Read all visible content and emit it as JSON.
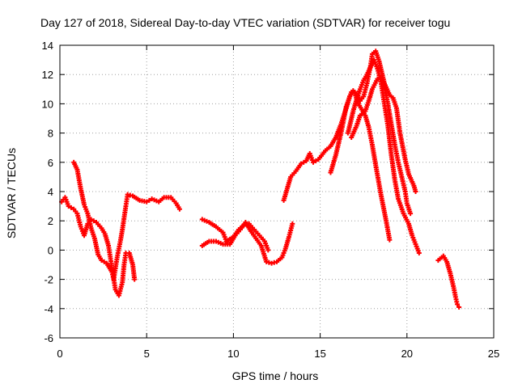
{
  "chart_data": {
    "type": "scatter",
    "title": "Day 127 of 2018, Sidereal Day-to-day VTEC variation (SDTVAR) for receiver togu",
    "xlabel": "GPS time / hours",
    "ylabel": "SDTVAR / TECUs",
    "xlim": [
      0,
      25
    ],
    "ylim": [
      -6,
      14
    ],
    "xticks": [
      "0",
      "5",
      "10",
      "15",
      "20",
      "25"
    ],
    "yticks": [
      "-6",
      "-4",
      "-2",
      "0",
      "2",
      "4",
      "6",
      "8",
      "10",
      "12",
      "14"
    ],
    "grid": true,
    "marker": "+",
    "color": "#ff0000",
    "series": [
      {
        "segments": [
          [
            [
              0.1,
              3.3
            ],
            [
              0.3,
              3.6
            ],
            [
              0.5,
              3.0
            ],
            [
              0.8,
              2.8
            ],
            [
              1.0,
              2.5
            ],
            [
              1.2,
              1.6
            ],
            [
              1.4,
              1.0
            ],
            [
              1.6,
              1.8
            ],
            [
              1.8,
              2.1
            ],
            [
              2.1,
              1.9
            ],
            [
              2.4,
              1.5
            ],
            [
              2.6,
              1.1
            ],
            [
              2.8,
              0.3
            ],
            [
              3.0,
              -1.2
            ],
            [
              3.2,
              -2.7
            ],
            [
              3.4,
              -3.1
            ],
            [
              3.6,
              -2.2
            ],
            [
              3.7,
              -1.0
            ],
            [
              3.8,
              -0.2
            ],
            [
              4.0,
              -0.2
            ],
            [
              4.2,
              -1.0
            ],
            [
              4.3,
              -2.0
            ]
          ],
          [
            [
              0.8,
              6.0
            ],
            [
              1.0,
              5.5
            ],
            [
              1.2,
              4.2
            ],
            [
              1.4,
              3.1
            ],
            [
              1.6,
              2.5
            ],
            [
              1.8,
              1.5
            ],
            [
              2.0,
              0.8
            ],
            [
              2.2,
              -0.3
            ],
            [
              2.4,
              -0.7
            ],
            [
              2.7,
              -0.9
            ],
            [
              3.0,
              -1.5
            ],
            [
              3.1,
              -2.0
            ],
            [
              3.3,
              -0.5
            ],
            [
              3.5,
              0.7
            ],
            [
              3.6,
              1.4
            ],
            [
              3.8,
              3.0
            ],
            [
              3.9,
              3.8
            ],
            [
              4.2,
              3.7
            ],
            [
              4.6,
              3.4
            ],
            [
              5.0,
              3.3
            ],
            [
              5.3,
              3.5
            ],
            [
              5.7,
              3.3
            ],
            [
              6.0,
              3.6
            ],
            [
              6.4,
              3.6
            ],
            [
              6.7,
              3.2
            ],
            [
              6.9,
              2.8
            ]
          ],
          [
            [
              8.2,
              2.1
            ],
            [
              8.6,
              1.9
            ],
            [
              9.0,
              1.6
            ],
            [
              9.4,
              1.2
            ],
            [
              9.6,
              0.6
            ],
            [
              10.0,
              0.9
            ],
            [
              10.3,
              1.4
            ],
            [
              10.6,
              1.7
            ],
            [
              10.9,
              1.8
            ],
            [
              11.2,
              1.4
            ],
            [
              11.5,
              1.0
            ],
            [
              11.8,
              0.6
            ],
            [
              12.0,
              0.0
            ]
          ],
          [
            [
              8.2,
              0.3
            ],
            [
              8.6,
              0.6
            ],
            [
              9.0,
              0.6
            ],
            [
              9.4,
              0.4
            ],
            [
              9.8,
              0.4
            ],
            [
              10.1,
              1.0
            ],
            [
              10.4,
              1.4
            ],
            [
              10.7,
              1.9
            ],
            [
              11.0,
              1.3
            ],
            [
              11.3,
              0.8
            ],
            [
              11.6,
              0.3
            ],
            [
              11.9,
              -0.8
            ],
            [
              12.2,
              -0.9
            ],
            [
              12.5,
              -0.8
            ],
            [
              12.8,
              -0.5
            ],
            [
              13.0,
              0.1
            ],
            [
              13.2,
              0.9
            ],
            [
              13.4,
              1.8
            ]
          ],
          [
            [
              12.9,
              3.4
            ],
            [
              13.1,
              4.2
            ],
            [
              13.3,
              5.0
            ],
            [
              13.6,
              5.4
            ],
            [
              13.9,
              5.9
            ],
            [
              14.2,
              6.1
            ],
            [
              14.4,
              6.6
            ],
            [
              14.6,
              6.0
            ],
            [
              14.9,
              6.2
            ],
            [
              15.3,
              6.8
            ],
            [
              15.6,
              7.1
            ],
            [
              15.9,
              7.7
            ],
            [
              16.2,
              8.6
            ],
            [
              16.5,
              9.7
            ],
            [
              16.7,
              10.5
            ],
            [
              16.9,
              10.9
            ],
            [
              17.1,
              10.7
            ],
            [
              17.3,
              10.2
            ],
            [
              17.5,
              10.5
            ],
            [
              17.7,
              11.4
            ],
            [
              17.9,
              12.6
            ],
            [
              18.0,
              13.4
            ],
            [
              18.2,
              13.6
            ],
            [
              18.4,
              12.9
            ],
            [
              18.7,
              11.4
            ],
            [
              19.0,
              10.6
            ],
            [
              19.2,
              10.4
            ],
            [
              19.4,
              9.7
            ],
            [
              19.6,
              8.0
            ],
            [
              19.9,
              6.2
            ],
            [
              20.1,
              5.2
            ],
            [
              20.4,
              4.4
            ],
            [
              20.5,
              4.0
            ]
          ],
          [
            [
              15.6,
              5.3
            ],
            [
              15.9,
              6.5
            ],
            [
              16.2,
              8.0
            ],
            [
              16.5,
              9.8
            ],
            [
              16.8,
              10.8
            ],
            [
              17.0,
              10.7
            ],
            [
              17.2,
              10.0
            ],
            [
              17.4,
              9.6
            ],
            [
              17.6,
              9.2
            ],
            [
              17.8,
              8.4
            ],
            [
              18.0,
              7.2
            ],
            [
              18.2,
              5.8
            ],
            [
              18.5,
              3.8
            ],
            [
              18.8,
              2.0
            ],
            [
              19.0,
              0.7
            ]
          ],
          [
            [
              16.6,
              8.0
            ],
            [
              16.9,
              9.5
            ],
            [
              17.1,
              10.3
            ],
            [
              17.3,
              11.0
            ],
            [
              17.5,
              11.6
            ],
            [
              17.7,
              12.0
            ],
            [
              17.9,
              12.5
            ],
            [
              18.1,
              13.0
            ],
            [
              18.3,
              12.4
            ],
            [
              18.5,
              11.5
            ],
            [
              18.7,
              10.0
            ],
            [
              18.9,
              8.5
            ],
            [
              19.1,
              6.5
            ],
            [
              19.3,
              4.8
            ],
            [
              19.5,
              3.5
            ],
            [
              19.8,
              2.5
            ],
            [
              20.1,
              1.8
            ],
            [
              20.3,
              1.0
            ],
            [
              20.5,
              0.4
            ],
            [
              20.7,
              -0.2
            ]
          ],
          [
            [
              16.8,
              7.7
            ],
            [
              17.1,
              8.5
            ],
            [
              17.3,
              9.2
            ],
            [
              17.6,
              9.5
            ],
            [
              17.8,
              10.2
            ],
            [
              18.0,
              11.0
            ],
            [
              18.3,
              11.7
            ],
            [
              18.5,
              11.8
            ],
            [
              18.7,
              11.3
            ],
            [
              18.9,
              10.0
            ],
            [
              19.1,
              8.6
            ],
            [
              19.3,
              7.2
            ],
            [
              19.5,
              6.0
            ],
            [
              19.7,
              5.0
            ],
            [
              19.9,
              4.0
            ],
            [
              20.0,
              3.2
            ],
            [
              20.2,
              2.5
            ]
          ],
          [
            [
              21.8,
              -0.7
            ],
            [
              22.1,
              -0.4
            ],
            [
              22.3,
              -0.8
            ],
            [
              22.5,
              -1.6
            ],
            [
              22.7,
              -2.6
            ],
            [
              22.8,
              -3.2
            ],
            [
              22.9,
              -3.7
            ],
            [
              23.0,
              -3.9
            ]
          ]
        ]
      }
    ]
  }
}
